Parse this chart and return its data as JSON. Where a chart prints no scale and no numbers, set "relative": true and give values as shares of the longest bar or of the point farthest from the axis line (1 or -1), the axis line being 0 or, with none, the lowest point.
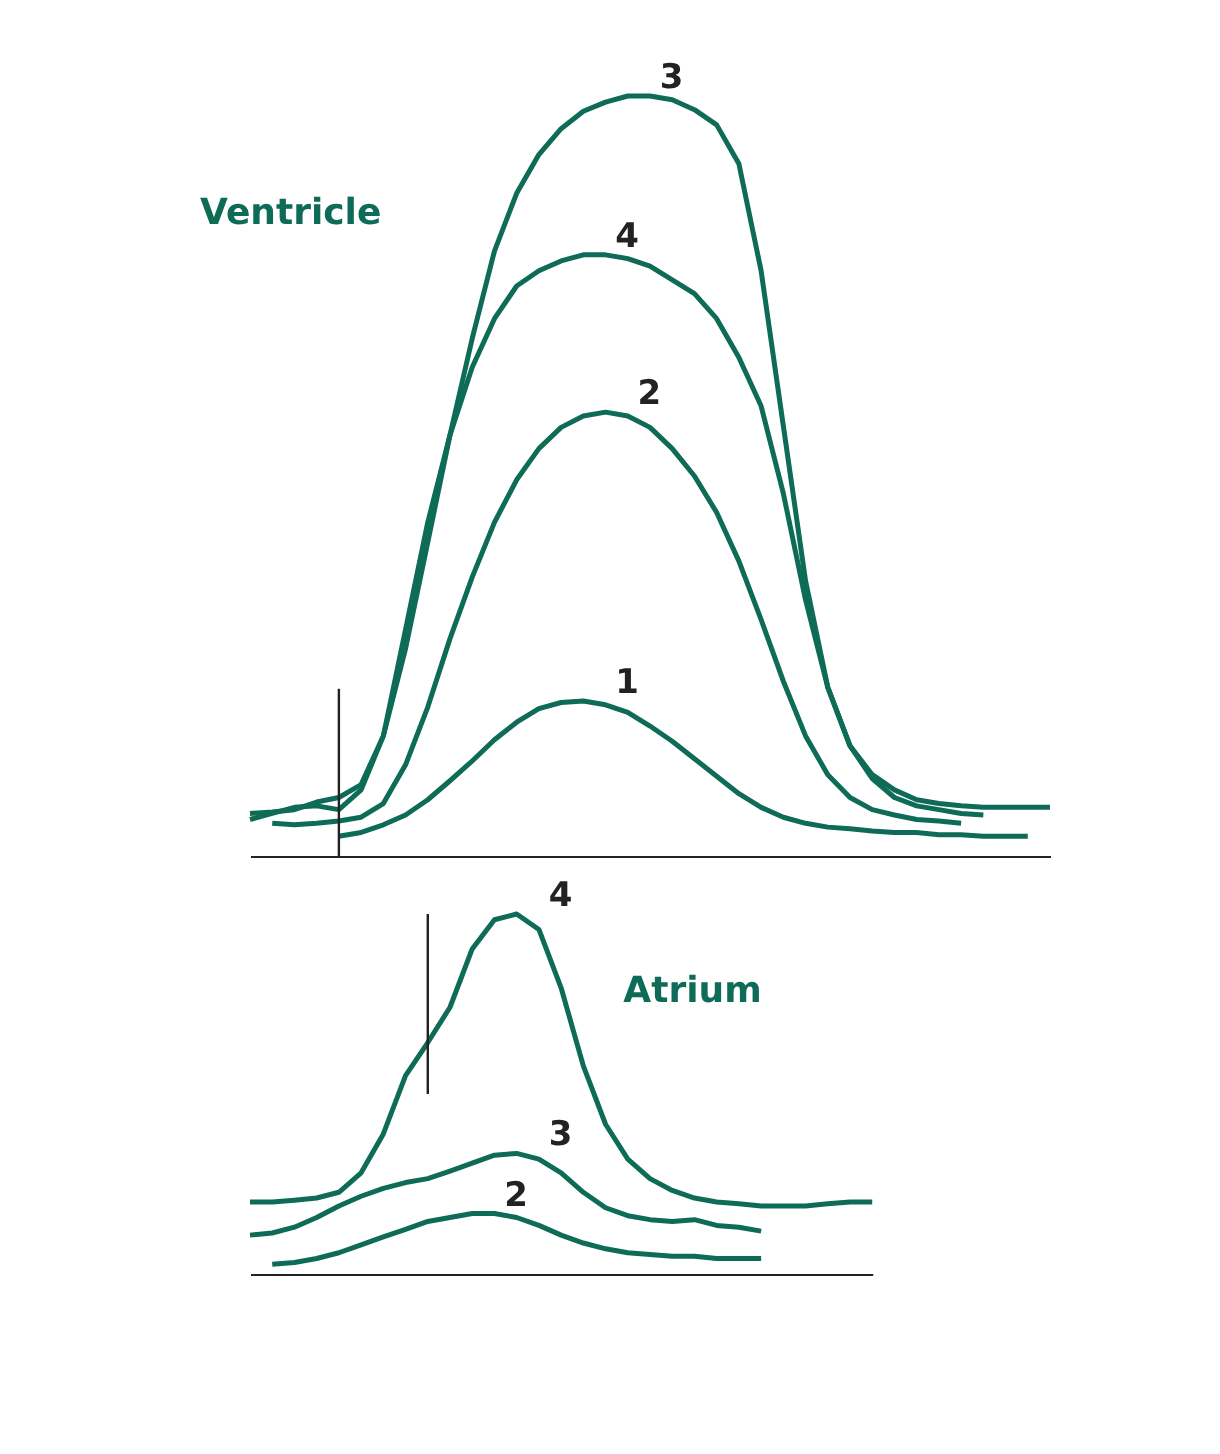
{
  "chart_data": [
    {
      "type": "line",
      "title": "Ventricle",
      "relative": true,
      "legend": false,
      "grid": false,
      "tick_labels": false,
      "marker": "none",
      "line_style": "solid",
      "categories": [
        null,
        null,
        null,
        null,
        null,
        null,
        null,
        null,
        null,
        null,
        null,
        null,
        null,
        null,
        null,
        null,
        null,
        null,
        null,
        null,
        null,
        null,
        null,
        null,
        null,
        null,
        null,
        null,
        null,
        null,
        null,
        null,
        null,
        null,
        null,
        null,
        null
      ],
      "series": [
        {
          "name": "3",
          "color": "#0e6b57",
          "values": [
            0.056,
            0.058,
            0.061,
            0.071,
            0.077,
            0.094,
            0.158,
            0.273,
            0.413,
            0.554,
            0.681,
            0.796,
            0.872,
            0.923,
            0.957,
            0.98,
            0.992,
            1,
            1,
            0.995,
            0.982,
            0.962,
            0.911,
            0.77,
            0.566,
            0.362,
            0.222,
            0.145,
            0.107,
            0.087,
            0.074,
            0.069,
            0.066,
            0.064,
            0.064,
            0.064,
            0.064
          ]
        },
        {
          "name": "4",
          "color": "#0e6b57",
          "values": [
            0.048,
            0.056,
            0.064,
            0.066,
            0.061,
            0.087,
            0.158,
            0.298,
            0.439,
            0.554,
            0.643,
            0.707,
            0.75,
            0.77,
            0.783,
            0.791,
            0.791,
            0.786,
            0.776,
            0.758,
            0.74,
            0.707,
            0.656,
            0.592,
            0.477,
            0.337,
            0.222,
            0.145,
            0.102,
            0.077,
            0.066,
            0.061,
            0.056,
            0.054,
            null,
            null,
            null
          ]
        },
        {
          "name": "2",
          "color": "#0e6b57",
          "values": [
            null,
            0.043,
            0.041,
            0.043,
            0.046,
            0.051,
            0.069,
            0.12,
            0.196,
            0.286,
            0.367,
            0.439,
            0.495,
            0.536,
            0.564,
            0.579,
            0.584,
            0.579,
            0.564,
            0.536,
            0.5,
            0.452,
            0.388,
            0.311,
            0.23,
            0.158,
            0.107,
            0.077,
            0.061,
            0.054,
            0.048,
            0.046,
            0.043,
            null,
            null,
            null,
            null
          ]
        },
        {
          "name": "1",
          "color": "#0e6b57",
          "values": [
            null,
            null,
            null,
            null,
            0.026,
            0.031,
            0.041,
            0.054,
            0.074,
            0.099,
            0.125,
            0.153,
            0.176,
            0.194,
            0.202,
            0.204,
            0.199,
            0.189,
            0.171,
            0.151,
            0.128,
            0.105,
            0.082,
            0.064,
            0.051,
            0.043,
            0.038,
            0.036,
            0.033,
            0.031,
            0.031,
            0.028,
            0.028,
            0.026,
            0.026,
            0.026,
            null
          ]
        }
      ]
    },
    {
      "type": "line",
      "title": "Atrium",
      "relative": true,
      "legend": false,
      "grid": false,
      "tick_labels": false,
      "marker": "none",
      "line_style": "solid",
      "categories": [
        null,
        null,
        null,
        null,
        null,
        null,
        null,
        null,
        null,
        null,
        null,
        null,
        null,
        null,
        null,
        null,
        null,
        null,
        null,
        null,
        null,
        null,
        null,
        null,
        null,
        null,
        null,
        null,
        null
      ],
      "series": [
        {
          "name": "4",
          "color": "#0e6b57",
          "values": [
            0.2,
            0.2,
            0.205,
            0.211,
            0.227,
            0.281,
            0.389,
            0.551,
            0.643,
            0.741,
            0.903,
            0.984,
            1,
            0.957,
            0.795,
            0.578,
            0.416,
            0.319,
            0.265,
            0.232,
            0.211,
            0.2,
            0.195,
            0.189,
            0.189,
            0.189,
            0.195,
            0.2,
            0.2
          ]
        },
        {
          "name": "3",
          "color": "#0e6b57",
          "values": [
            0.108,
            0.114,
            0.13,
            0.157,
            0.189,
            0.216,
            0.238,
            0.254,
            0.265,
            0.286,
            0.308,
            0.33,
            0.335,
            0.319,
            0.281,
            0.227,
            0.184,
            0.162,
            0.151,
            0.146,
            0.151,
            0.135,
            0.13,
            0.119,
            null,
            null,
            null,
            null,
            null
          ]
        },
        {
          "name": "2",
          "color": "#0e6b57",
          "values": [
            null,
            0.027,
            0.032,
            0.043,
            0.059,
            0.081,
            0.103,
            0.124,
            0.146,
            0.157,
            0.168,
            0.168,
            0.157,
            0.135,
            0.108,
            0.086,
            0.07,
            0.059,
            0.054,
            0.049,
            0.049,
            0.043,
            0.043,
            0.043,
            null,
            null,
            null,
            null,
            null
          ]
        }
      ]
    }
  ]
}
